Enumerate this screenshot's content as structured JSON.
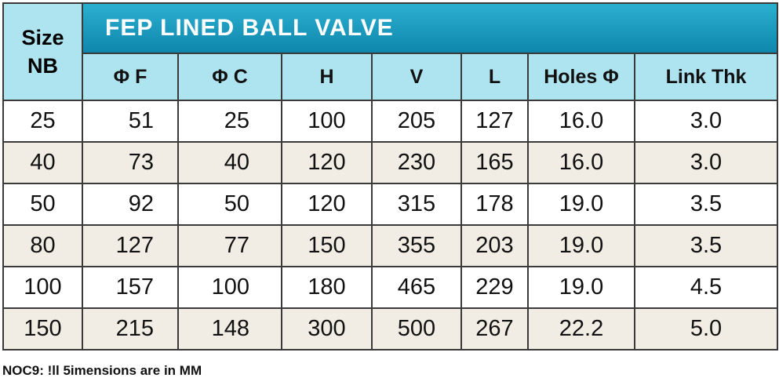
{
  "table": {
    "title": "FEP LINED BALL VALVE",
    "size_header": [
      "Size",
      "NB"
    ],
    "columns": [
      "Φ F",
      "Φ C",
      "H",
      "V",
      "L",
      "Holes Φ",
      "Link Thk"
    ],
    "rows": [
      [
        "25",
        "51",
        "25",
        "100",
        "205",
        "127",
        "16.0",
        "3.0"
      ],
      [
        "40",
        "73",
        "40",
        "120",
        "230",
        "165",
        "16.0",
        "3.0"
      ],
      [
        "50",
        "92",
        "50",
        "120",
        "315",
        "178",
        "19.0",
        "3.5"
      ],
      [
        "80",
        "127",
        "77",
        "150",
        "355",
        "203",
        "19.0",
        "3.5"
      ],
      [
        "100",
        "157",
        "100",
        "180",
        "465",
        "229",
        "19.0",
        "4.5"
      ],
      [
        "150",
        "215",
        "148",
        "300",
        "500",
        "267",
        "22.2",
        "5.0"
      ]
    ]
  },
  "note": "NOC9: !ll 5imensions are in MM"
}
